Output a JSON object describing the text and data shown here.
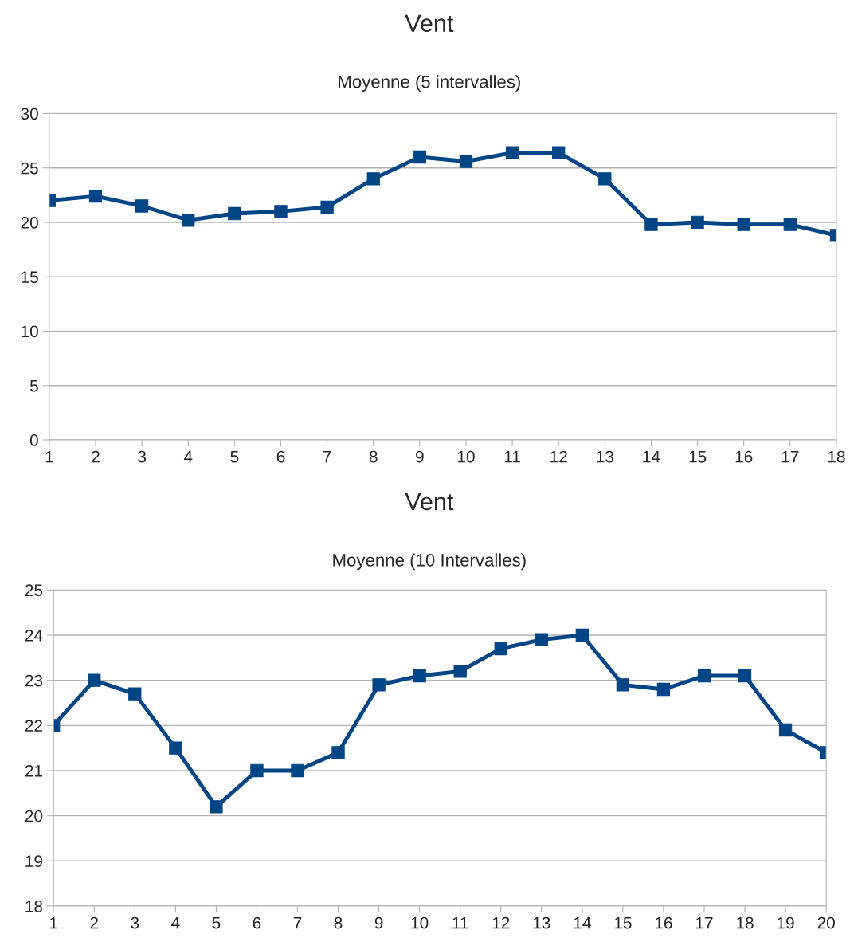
{
  "chart_data": [
    {
      "type": "line",
      "title": "Vent",
      "subtitle": "Moyenne (5 intervalles)",
      "x": [
        1,
        2,
        3,
        4,
        5,
        6,
        7,
        8,
        9,
        10,
        11,
        12,
        13,
        14,
        15,
        16,
        17,
        18
      ],
      "series": [
        {
          "color": "#004586",
          "values": [
            22.0,
            22.4,
            21.5,
            20.2,
            20.8,
            21.0,
            21.4,
            24.0,
            26.0,
            25.6,
            26.4,
            26.4,
            24.0,
            19.8,
            20.0,
            19.8,
            19.8,
            18.8
          ]
        }
      ],
      "xlim": [
        1,
        18
      ],
      "xticks": [
        1,
        2,
        3,
        4,
        5,
        6,
        7,
        8,
        9,
        10,
        11,
        12,
        13,
        14,
        15,
        16,
        17,
        18
      ],
      "ylim": [
        0,
        30
      ],
      "yticks": [
        0,
        5,
        10,
        15,
        20,
        25,
        30
      ],
      "grid": "y",
      "marker": "square",
      "line_style": "solid"
    },
    {
      "type": "line",
      "title": "Vent",
      "subtitle": "Moyenne (10 Intervalles)",
      "x": [
        1,
        2,
        3,
        4,
        5,
        6,
        7,
        8,
        9,
        10,
        11,
        12,
        13,
        14,
        15,
        16,
        17,
        18,
        19,
        20
      ],
      "series": [
        {
          "color": "#004586",
          "values": [
            22.0,
            23.0,
            22.7,
            21.5,
            20.2,
            21.0,
            21.0,
            21.4,
            22.9,
            23.1,
            23.2,
            23.7,
            23.9,
            24.0,
            22.9,
            22.8,
            23.1,
            23.1,
            21.9,
            21.4
          ]
        }
      ],
      "xlim": [
        1,
        20
      ],
      "xticks": [
        1,
        2,
        3,
        4,
        5,
        6,
        7,
        8,
        9,
        10,
        11,
        12,
        13,
        14,
        15,
        16,
        17,
        18,
        19,
        20
      ],
      "ylim": [
        18,
        25
      ],
      "yticks": [
        18,
        19,
        20,
        21,
        22,
        23,
        24,
        25
      ],
      "grid": "y",
      "marker": "square",
      "line_style": "solid"
    }
  ]
}
